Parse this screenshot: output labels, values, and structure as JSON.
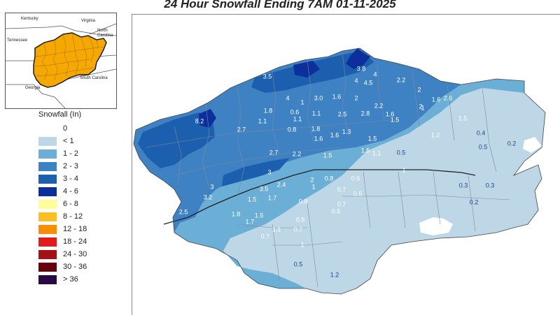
{
  "title": "24 Hour Snowfall Ending 7AM 01-11-2025",
  "inset": {
    "labels": [
      "Kentucky",
      "Virginia",
      "North Carolina",
      "Tennessee",
      "South Carolina",
      "Georgia"
    ],
    "highlight_color": "#f5a800"
  },
  "legend": {
    "title": "Snowfall (In)",
    "items": [
      {
        "label": "0",
        "color": "#ffffff"
      },
      {
        "label": "< 1",
        "color": "#bdd7e7"
      },
      {
        "label": "1 - 2",
        "color": "#6baed6"
      },
      {
        "label": "2 - 3",
        "color": "#3f82c4"
      },
      {
        "label": "3 - 4",
        "color": "#1c5fae"
      },
      {
        "label": "4 - 6",
        "color": "#0c2f9c"
      },
      {
        "label": "6 - 8",
        "color": "#ffff99"
      },
      {
        "label": "8 - 12",
        "color": "#fbbf24"
      },
      {
        "label": "12 - 18",
        "color": "#fb8c00"
      },
      {
        "label": "18 - 24",
        "color": "#e31a1c"
      },
      {
        "label": "24 - 30",
        "color": "#a50f15"
      },
      {
        "label": "30 - 36",
        "color": "#67000d"
      },
      {
        "label": "> 36",
        "color": "#2a0a44"
      }
    ]
  },
  "map": {
    "values": [
      "3.8",
      "4",
      "4",
      "3.5",
      "4.5",
      "2.2",
      "2",
      "1.6",
      "2.6",
      "4",
      "1",
      "3.0",
      "1.6",
      "2",
      "2",
      "1.8",
      "0.6",
      "1.1",
      "2.5",
      "2.2",
      "1.6",
      "8.2",
      "1.1",
      "1.1",
      "2.8",
      "1.5",
      "1",
      "2.7",
      "0.8",
      "1.8",
      "1.3",
      "1.6",
      "1.2",
      "0.4",
      "1.6",
      "1.5",
      "1.5",
      "0.2",
      "1.5",
      "2.7",
      "2.2",
      "1.5",
      "1.1",
      "0.5",
      "0.5",
      "3",
      "1",
      "2",
      "0.8",
      "0.6",
      "3.2",
      "3",
      "3.5",
      "2.4",
      "1",
      "0.7",
      "0.5",
      "0.3",
      "0.3",
      "1.5",
      "1.7",
      "0.9",
      "0.7",
      "0.5",
      "0.2",
      "2.5",
      "1.8",
      "1.7",
      "1.5",
      "0.5",
      "1.1",
      "0.7",
      "0.7",
      "1",
      "0.5",
      "1.2"
    ]
  }
}
